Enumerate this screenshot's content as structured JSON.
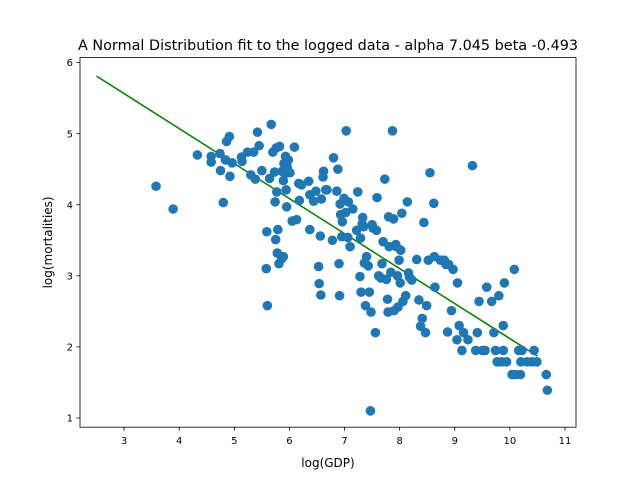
{
  "chart_data": {
    "type": "scatter",
    "title": "A Normal Distribution fit to the logged data - alpha 7.045 beta -0.493",
    "xlabel": "log(GDP)",
    "ylabel": "log(mortalities)",
    "xlim": [
      2.2,
      11.2
    ],
    "ylim": [
      0.87,
      6.07
    ],
    "xticks": [
      3,
      4,
      5,
      6,
      7,
      8,
      9,
      10,
      11
    ],
    "yticks": [
      1,
      2,
      3,
      4,
      5,
      6
    ],
    "grid": false,
    "marker_color": "#1f77b4",
    "line_color": "#008000",
    "fit_line": {
      "alpha": 7.045,
      "beta": -0.493,
      "x": [
        2.5,
        10.5
      ],
      "y": [
        5.81,
        1.87
      ]
    },
    "points": [
      [
        3.58,
        4.26
      ],
      [
        3.89,
        3.94
      ],
      [
        4.33,
        4.7
      ],
      [
        4.58,
        4.68
      ],
      [
        4.58,
        4.6
      ],
      [
        4.74,
        4.72
      ],
      [
        4.75,
        4.48
      ],
      [
        4.8,
        4.03
      ],
      [
        4.84,
        4.63
      ],
      [
        4.86,
        4.89
      ],
      [
        4.91,
        4.96
      ],
      [
        4.92,
        4.4
      ],
      [
        4.96,
        4.59
      ],
      [
        5.13,
        4.67
      ],
      [
        5.14,
        4.61
      ],
      [
        5.24,
        4.74
      ],
      [
        5.3,
        4.42
      ],
      [
        5.35,
        4.74
      ],
      [
        5.38,
        4.36
      ],
      [
        5.42,
        5.02
      ],
      [
        5.45,
        4.83
      ],
      [
        5.5,
        4.48
      ],
      [
        5.58,
        3.1
      ],
      [
        5.59,
        3.62
      ],
      [
        5.6,
        2.58
      ],
      [
        5.64,
        4.37
      ],
      [
        5.67,
        5.13
      ],
      [
        5.7,
        4.74
      ],
      [
        5.73,
        4.46
      ],
      [
        5.74,
        4.04
      ],
      [
        5.75,
        3.51
      ],
      [
        5.76,
        4.8
      ],
      [
        5.77,
        4.18
      ],
      [
        5.78,
        3.32
      ],
      [
        5.79,
        3.65
      ],
      [
        5.81,
        3.17
      ],
      [
        5.82,
        4.82
      ],
      [
        5.86,
        3.24
      ],
      [
        5.87,
        4.47
      ],
      [
        5.89,
        4.34
      ],
      [
        5.89,
        3.27
      ],
      [
        5.9,
        4.58
      ],
      [
        5.92,
        4.44
      ],
      [
        5.93,
        4.68
      ],
      [
        5.94,
        4.21
      ],
      [
        5.95,
        3.97
      ],
      [
        5.96,
        4.53
      ],
      [
        5.98,
        4.63
      ],
      [
        6.01,
        4.45
      ],
      [
        6.05,
        3.77
      ],
      [
        6.09,
        4.81
      ],
      [
        6.13,
        3.79
      ],
      [
        6.17,
        4.3
      ],
      [
        6.18,
        4.06
      ],
      [
        6.22,
        4.28
      ],
      [
        6.35,
        4.33
      ],
      [
        6.37,
        4.14
      ],
      [
        6.37,
        3.65
      ],
      [
        6.44,
        4.05
      ],
      [
        6.48,
        4.19
      ],
      [
        6.53,
        3.13
      ],
      [
        6.54,
        2.89
      ],
      [
        6.56,
        3.56
      ],
      [
        6.57,
        2.73
      ],
      [
        6.58,
        4.08
      ],
      [
        6.61,
        4.39
      ],
      [
        6.62,
        4.47
      ],
      [
        6.66,
        4.21
      ],
      [
        6.68,
        4.21
      ],
      [
        6.78,
        3.5
      ],
      [
        6.8,
        4.66
      ],
      [
        6.86,
        4.19
      ],
      [
        6.88,
        4.5
      ],
      [
        6.9,
        3.17
      ],
      [
        6.91,
        2.72
      ],
      [
        6.92,
        4.01
      ],
      [
        6.93,
        3.86
      ],
      [
        6.95,
        3.55
      ],
      [
        6.96,
        3.76
      ],
      [
        6.99,
        4.09
      ],
      [
        7.02,
        3.89
      ],
      [
        7.03,
        5.04
      ],
      [
        7.06,
        3.54
      ],
      [
        7.07,
        4.04
      ],
      [
        7.1,
        3.41
      ],
      [
        7.15,
        3.94
      ],
      [
        7.22,
        3.64
      ],
      [
        7.24,
        4.18
      ],
      [
        7.28,
        2.99
      ],
      [
        7.29,
        3.53
      ],
      [
        7.3,
        2.77
      ],
      [
        7.32,
        3.73
      ],
      [
        7.33,
        3.82
      ],
      [
        7.35,
        3.69
      ],
      [
        7.36,
        3.18
      ],
      [
        7.38,
        2.58
      ],
      [
        7.4,
        3.27
      ],
      [
        7.43,
        3.14
      ],
      [
        7.45,
        2.77
      ],
      [
        7.47,
        1.1
      ],
      [
        7.48,
        2.49
      ],
      [
        7.5,
        3.72
      ],
      [
        7.52,
        3.67
      ],
      [
        7.56,
        2.2
      ],
      [
        7.58,
        3.64
      ],
      [
        7.59,
        4.1
      ],
      [
        7.62,
        3.0
      ],
      [
        7.66,
        2.97
      ],
      [
        7.68,
        3.17
      ],
      [
        7.7,
        3.48
      ],
      [
        7.73,
        4.36
      ],
      [
        7.76,
        2.95
      ],
      [
        7.78,
        2.67
      ],
      [
        7.79,
        2.49
      ],
      [
        7.8,
        3.83
      ],
      [
        7.81,
        3.41
      ],
      [
        7.84,
        3.05
      ],
      [
        7.87,
        5.04
      ],
      [
        7.89,
        3.8
      ],
      [
        7.9,
        2.51
      ],
      [
        7.93,
        3.44
      ],
      [
        7.94,
        3.41
      ],
      [
        7.96,
        3.0
      ],
      [
        7.97,
        2.56
      ],
      [
        7.99,
        3.22
      ],
      [
        8.01,
        2.9
      ],
      [
        8.02,
        3.36
      ],
      [
        8.04,
        3.88
      ],
      [
        8.06,
        2.64
      ],
      [
        8.11,
        2.72
      ],
      [
        8.14,
        4.04
      ],
      [
        8.16,
        3.04
      ],
      [
        8.18,
        2.98
      ],
      [
        8.22,
        2.94
      ],
      [
        8.31,
        3.23
      ],
      [
        8.35,
        2.66
      ],
      [
        8.38,
        2.29
      ],
      [
        8.41,
        2.4
      ],
      [
        8.44,
        3.75
      ],
      [
        8.47,
        2.2
      ],
      [
        8.49,
        2.58
      ],
      [
        8.52,
        3.22
      ],
      [
        8.55,
        4.45
      ],
      [
        8.62,
        4.02
      ],
      [
        8.63,
        3.27
      ],
      [
        8.64,
        2.84
      ],
      [
        8.74,
        3.22
      ],
      [
        8.81,
        3.22
      ],
      [
        8.84,
        3.16
      ],
      [
        8.87,
        2.21
      ],
      [
        8.89,
        3.16
      ],
      [
        8.94,
        2.51
      ],
      [
        8.97,
        3.09
      ],
      [
        9.04,
        2.1
      ],
      [
        9.05,
        2.9
      ],
      [
        9.08,
        2.3
      ],
      [
        9.13,
        1.95
      ],
      [
        9.16,
        2.2
      ],
      [
        9.24,
        2.1
      ],
      [
        9.32,
        4.55
      ],
      [
        9.38,
        1.95
      ],
      [
        9.41,
        2.2
      ],
      [
        9.44,
        2.64
      ],
      [
        9.5,
        1.95
      ],
      [
        9.55,
        1.95
      ],
      [
        9.58,
        2.84
      ],
      [
        9.67,
        2.64
      ],
      [
        9.71,
        2.2
      ],
      [
        9.74,
        1.95
      ],
      [
        9.77,
        1.79
      ],
      [
        9.8,
        2.72
      ],
      [
        9.85,
        1.79
      ],
      [
        9.88,
        1.95
      ],
      [
        9.88,
        2.3
      ],
      [
        9.9,
        2.9
      ],
      [
        9.94,
        1.79
      ],
      [
        10.04,
        1.61
      ],
      [
        10.08,
        3.09
      ],
      [
        10.1,
        1.61
      ],
      [
        10.16,
        1.95
      ],
      [
        10.19,
        1.61
      ],
      [
        10.2,
        1.79
      ],
      [
        10.22,
        1.95
      ],
      [
        10.31,
        1.79
      ],
      [
        10.4,
        1.79
      ],
      [
        10.44,
        1.95
      ],
      [
        10.49,
        1.79
      ],
      [
        10.66,
        1.61
      ],
      [
        10.68,
        1.39
      ]
    ]
  }
}
